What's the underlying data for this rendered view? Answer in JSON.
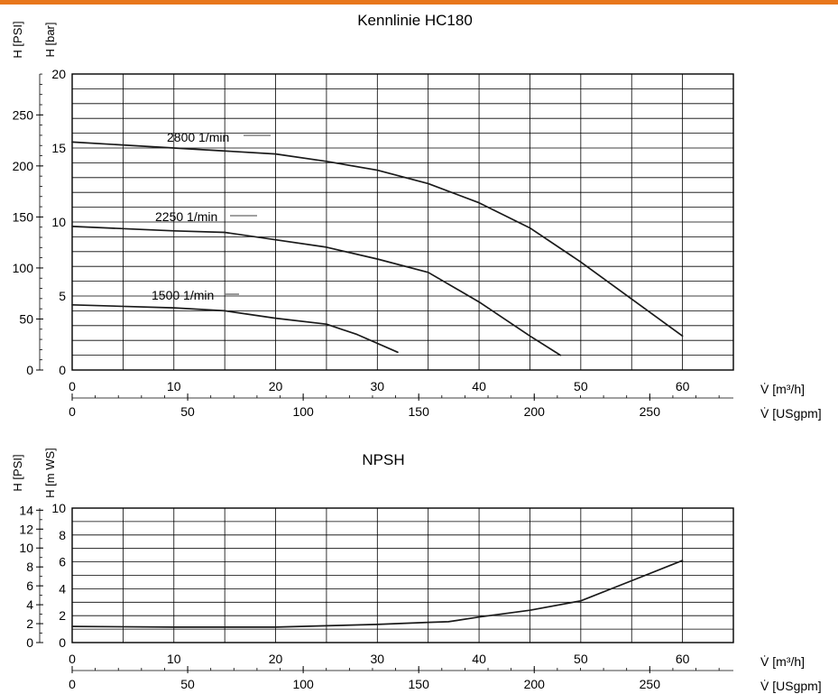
{
  "accent_color": "#e8771c",
  "chart_data": [
    {
      "type": "line",
      "title": "Kennlinie HC180",
      "x_primary": {
        "label": "V̇ [m³/h]",
        "range": [
          0,
          65
        ],
        "ticks": [
          0,
          10,
          20,
          30,
          40,
          50,
          60
        ]
      },
      "x_secondary": {
        "label": "V̇ [USgpm]",
        "ticks": [
          0,
          50,
          100,
          150,
          200,
          250
        ]
      },
      "y_primary": {
        "label": "H [bar]",
        "range": [
          0,
          20
        ],
        "ticks": [
          0,
          5,
          10,
          15,
          20
        ]
      },
      "y_secondary": {
        "label": "H [PSI]",
        "ticks": [
          0,
          50,
          100,
          150,
          200,
          250
        ]
      },
      "grid": true,
      "series": [
        {
          "name": "2800 1/min",
          "x": [
            0,
            10,
            20,
            25,
            30,
            35,
            40,
            45,
            50,
            55,
            60
          ],
          "y": [
            15.4,
            15.0,
            14.6,
            14.1,
            13.5,
            12.6,
            11.3,
            9.6,
            7.3,
            4.8,
            2.3
          ]
        },
        {
          "name": "2250 1/min",
          "x": [
            0,
            10,
            15,
            20,
            25,
            30,
            35,
            40,
            45,
            48
          ],
          "y": [
            9.7,
            9.4,
            9.3,
            8.8,
            8.3,
            7.5,
            6.6,
            4.6,
            2.3,
            1.0
          ]
        },
        {
          "name": "1500 1/min",
          "x": [
            0,
            10,
            15,
            20,
            25,
            28,
            32
          ],
          "y": [
            4.4,
            4.2,
            4.0,
            3.5,
            3.1,
            2.4,
            1.2
          ]
        }
      ]
    },
    {
      "type": "line",
      "title": "NPSH",
      "x_primary": {
        "label": "V̇ [m³/h]",
        "range": [
          0,
          65
        ],
        "ticks": [
          0,
          10,
          20,
          30,
          40,
          50,
          60
        ]
      },
      "x_secondary": {
        "label": "V̇ [USgpm]",
        "ticks": [
          0,
          50,
          100,
          150,
          200,
          250
        ]
      },
      "y_primary": {
        "label": "H [m WS]",
        "range": [
          0,
          10
        ],
        "ticks": [
          0,
          2,
          4,
          6,
          8,
          10
        ]
      },
      "y_secondary": {
        "label": "H [PSI]",
        "ticks": [
          0,
          2,
          4,
          6,
          8,
          10,
          12,
          14
        ]
      },
      "grid": true,
      "series": [
        {
          "x": [
            0,
            10,
            20,
            25,
            30,
            35,
            37,
            40,
            45,
            50,
            55,
            60
          ],
          "y": [
            1.2,
            1.15,
            1.15,
            1.25,
            1.35,
            1.5,
            1.55,
            1.9,
            2.4,
            3.1,
            4.6,
            6.1
          ]
        }
      ]
    }
  ]
}
